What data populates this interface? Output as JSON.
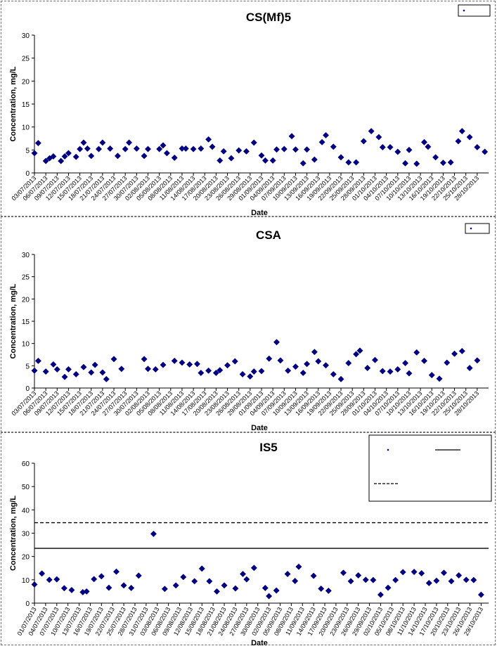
{
  "chart_data": [
    {
      "type": "scatter",
      "title": "CS(Mf)5",
      "xlabel": "Date",
      "ylabel": "Concentration, mg/L",
      "ylim": [
        0,
        30
      ],
      "yticks": [
        0,
        5,
        10,
        15,
        20,
        25,
        30
      ],
      "xlim": [
        "2013-07-03",
        "2013-10-31"
      ],
      "xticks": [
        "03/07/2013",
        "06/07/2013",
        "09/07/2013",
        "12/07/2013",
        "15/07/2013",
        "18/07/2013",
        "21/07/2013",
        "24/07/2013",
        "27/07/2013",
        "30/07/2013",
        "02/08/2013",
        "05/08/2013",
        "08/08/2013",
        "11/08/2013",
        "14/08/2013",
        "17/08/2013",
        "20/08/2013",
        "23/08/2013",
        "26/08/2013",
        "29/08/2013",
        "01/09/2013",
        "04/09/2013",
        "07/09/2013",
        "10/09/2013",
        "13/09/2013",
        "16/09/2013",
        "19/09/2013",
        "22/09/2013",
        "25/09/2013",
        "28/09/2013",
        "01/10/2013",
        "04/10/2013",
        "07/10/2013",
        "10/10/2013",
        "13/10/2013",
        "16/10/2013",
        "19/10/2013",
        "22/10/2013",
        "25/10/2013",
        "28/10/2013"
      ],
      "legend": {
        "position": "top-right",
        "entries": [
          {
            "label": "",
            "marker": "diamond"
          }
        ]
      },
      "grid": false,
      "series": [
        {
          "marker": "diamond",
          "color": "#000080",
          "x": [
            "2013-07-03",
            "2013-07-04",
            "2013-07-06",
            "2013-07-07",
            "2013-07-08",
            "2013-07-10",
            "2013-07-11",
            "2013-07-12",
            "2013-07-14",
            "2013-07-15",
            "2013-07-16",
            "2013-07-17",
            "2013-07-18",
            "2013-07-20",
            "2013-07-21",
            "2013-07-23",
            "2013-07-25",
            "2013-07-27",
            "2013-07-28",
            "2013-07-30",
            "2013-08-01",
            "2013-08-02",
            "2013-08-05",
            "2013-08-06",
            "2013-08-07",
            "2013-08-09",
            "2013-08-11",
            "2013-08-12",
            "2013-08-14",
            "2013-08-16",
            "2013-08-18",
            "2013-08-19",
            "2013-08-21",
            "2013-08-22",
            "2013-08-24",
            "2013-08-26",
            "2013-08-28",
            "2013-08-30",
            "2013-09-01",
            "2013-09-02",
            "2013-09-04",
            "2013-09-05",
            "2013-09-07",
            "2013-09-09",
            "2013-09-10",
            "2013-09-12",
            "2013-09-13",
            "2013-09-15",
            "2013-09-17",
            "2013-09-18",
            "2013-09-20",
            "2013-09-22",
            "2013-09-24",
            "2013-09-26",
            "2013-09-28",
            "2013-09-30",
            "2013-10-02",
            "2013-10-03",
            "2013-10-05",
            "2013-10-07",
            "2013-10-09",
            "2013-10-10",
            "2013-10-12",
            "2013-10-14",
            "2013-10-15",
            "2013-10-17",
            "2013-10-19",
            "2013-10-21",
            "2013-10-23",
            "2013-10-24",
            "2013-10-26",
            "2013-10-28",
            "2013-10-30"
          ],
          "y": [
            4.3,
            6.5,
            2.6,
            3.2,
            3.6,
            2.6,
            3.6,
            4.3,
            3.5,
            5.2,
            6.6,
            5.3,
            3.7,
            5.2,
            6.6,
            5.3,
            3.7,
            5.2,
            6.6,
            5.3,
            3.7,
            5.2,
            5.2,
            6.0,
            4.3,
            3.3,
            5.3,
            5.3,
            5.2,
            5.3,
            7.3,
            5.7,
            2.7,
            4.7,
            3.2,
            4.9,
            4.7,
            6.6,
            3.8,
            2.7,
            2.7,
            5.1,
            5.2,
            8.0,
            5.1,
            2.1,
            5.1,
            2.9,
            6.7,
            8.2,
            5.7,
            3.4,
            2.3,
            2.3,
            6.9,
            9.1,
            7.8,
            5.6,
            5.6,
            4.6,
            2.1,
            5.0,
            2.0,
            6.7,
            5.7,
            3.4,
            2.2,
            2.3,
            6.9,
            9.1,
            7.8,
            5.6,
            4.6
          ]
        }
      ]
    },
    {
      "type": "scatter",
      "title": "CSA",
      "xlabel": "Date",
      "ylabel": "Concentration, mg/L",
      "ylim": [
        0,
        30
      ],
      "yticks": [
        0,
        5,
        10,
        15,
        20,
        25,
        30
      ],
      "xlim": [
        "2013-07-03",
        "2013-10-31"
      ],
      "xticks": [
        "03/07/2013",
        "06/07/2013",
        "09/07/2013",
        "12/07/2013",
        "15/07/2013",
        "18/07/2013",
        "21/07/2013",
        "24/07/2013",
        "27/07/2013",
        "30/07/2013",
        "02/08/2013",
        "05/08/2013",
        "08/08/2013",
        "11/08/2013",
        "14/08/2013",
        "17/08/2013",
        "20/08/2013",
        "23/08/2013",
        "26/08/2013",
        "29/08/2013",
        "01/09/2013",
        "04/09/2013",
        "07/09/2013",
        "10/09/2013",
        "13/09/2013",
        "16/09/2013",
        "19/09/2013",
        "22/09/2013",
        "25/09/2013",
        "28/09/2013",
        "01/10/2013",
        "04/10/2013",
        "07/10/2013",
        "10/10/2013",
        "13/10/2013",
        "16/10/2013",
        "19/10/2013",
        "22/10/2013",
        "25/10/2013",
        "28/10/2013"
      ],
      "legend": {
        "position": "top-right",
        "entries": [
          {
            "label": "",
            "marker": "diamond"
          }
        ]
      },
      "grid": false,
      "series": [
        {
          "marker": "diamond",
          "color": "#000080",
          "x": [
            "2013-07-03",
            "2013-07-04",
            "2013-07-06",
            "2013-07-08",
            "2013-07-09",
            "2013-07-11",
            "2013-07-12",
            "2013-07-14",
            "2013-07-16",
            "2013-07-18",
            "2013-07-19",
            "2013-07-21",
            "2013-07-22",
            "2013-07-24",
            "2013-07-26",
            "2013-08-01",
            "2013-08-02",
            "2013-08-04",
            "2013-08-06",
            "2013-08-09",
            "2013-08-11",
            "2013-08-13",
            "2013-08-15",
            "2013-08-16",
            "2013-08-18",
            "2013-08-20",
            "2013-08-21",
            "2013-08-23",
            "2013-08-25",
            "2013-08-27",
            "2013-08-29",
            "2013-08-30",
            "2013-09-01",
            "2013-09-03",
            "2013-09-05",
            "2013-09-06",
            "2013-09-08",
            "2013-09-10",
            "2013-09-12",
            "2013-09-13",
            "2013-09-15",
            "2013-09-16",
            "2013-09-18",
            "2013-09-20",
            "2013-09-22",
            "2013-09-24",
            "2013-09-26",
            "2013-09-27",
            "2013-09-29",
            "2013-10-01",
            "2013-10-03",
            "2013-10-05",
            "2013-10-07",
            "2013-10-09",
            "2013-10-10",
            "2013-10-12",
            "2013-10-14",
            "2013-10-16",
            "2013-10-18",
            "2013-10-20",
            "2013-10-22",
            "2013-10-24",
            "2013-10-26",
            "2013-10-28"
          ],
          "y": [
            3.9,
            6.1,
            3.7,
            5.3,
            4.2,
            2.5,
            4.2,
            3.1,
            4.7,
            3.5,
            5.2,
            3.5,
            2.0,
            6.5,
            4.3,
            6.5,
            4.3,
            4.2,
            5.2,
            6.1,
            5.7,
            5.3,
            5.4,
            3.4,
            3.9,
            3.4,
            4.0,
            5.1,
            6.0,
            3.1,
            2.6,
            3.7,
            3.8,
            6.6,
            10.3,
            6.2,
            3.9,
            4.8,
            3.4,
            5.4,
            8.1,
            6.0,
            5.1,
            3.1,
            2.0,
            5.6,
            7.6,
            8.4,
            4.5,
            6.3,
            3.8,
            3.7,
            4.2,
            5.6,
            3.3,
            8.0,
            6.1,
            2.9,
            2.1,
            5.7,
            7.7,
            8.3,
            4.5,
            6.2
          ]
        }
      ]
    },
    {
      "type": "scatter",
      "title": "IS5",
      "xlabel": "Date",
      "ylabel": "Concentration, mg/L",
      "ylim": [
        0,
        60
      ],
      "yticks": [
        0,
        10,
        20,
        30,
        40,
        50,
        60
      ],
      "xlim": [
        "2013-07-01",
        "2013-10-31"
      ],
      "xticks": [
        "01/07/2013",
        "04/07/2013",
        "07/07/2013",
        "10/07/2013",
        "13/07/2013",
        "16/07/2013",
        "19/07/2013",
        "22/07/2013",
        "25/07/2013",
        "28/07/2013",
        "31/07/2013",
        "03/08/2013",
        "06/08/2013",
        "09/08/2013",
        "12/08/2013",
        "15/08/2013",
        "18/08/2013",
        "21/08/2013",
        "24/08/2013",
        "27/08/2013",
        "30/08/2013",
        "02/09/2013",
        "05/09/2013",
        "08/09/2013",
        "11/09/2013",
        "14/09/2013",
        "17/09/2013",
        "20/09/2013",
        "23/09/2013",
        "26/09/2013",
        "29/09/2013",
        "02/10/2013",
        "05/10/2013",
        "08/10/2013",
        "11/10/2013",
        "14/10/2013",
        "17/10/2013",
        "20/10/2013",
        "23/10/2013",
        "26/10/2013",
        "29/10/2013"
      ],
      "legend": {
        "position": "top-right",
        "entries": [
          {
            "label": "",
            "marker": "diamond"
          },
          {
            "label": "",
            "line": "solid"
          },
          {
            "label": "",
            "line": "dashed"
          }
        ]
      },
      "grid": false,
      "reference_lines": [
        {
          "style": "solid",
          "y": 23.5
        },
        {
          "style": "dashed",
          "y": 34.5
        }
      ],
      "series": [
        {
          "marker": "diamond",
          "color": "#000080",
          "x": [
            "2013-07-01",
            "2013-07-03",
            "2013-07-05",
            "2013-07-07",
            "2013-07-09",
            "2013-07-11",
            "2013-07-14",
            "2013-07-15",
            "2013-07-17",
            "2013-07-19",
            "2013-07-21",
            "2013-07-23",
            "2013-07-25",
            "2013-07-27",
            "2013-07-29",
            "2013-08-02",
            "2013-08-05",
            "2013-08-08",
            "2013-08-10",
            "2013-08-13",
            "2013-08-15",
            "2013-08-17",
            "2013-08-19",
            "2013-08-21",
            "2013-08-24",
            "2013-08-26",
            "2013-08-27",
            "2013-08-29",
            "2013-09-01",
            "2013-09-02",
            "2013-09-04",
            "2013-09-07",
            "2013-09-09",
            "2013-09-10",
            "2013-09-14",
            "2013-09-16",
            "2013-09-18",
            "2013-09-22",
            "2013-09-24",
            "2013-09-26",
            "2013-09-28",
            "2013-09-30",
            "2013-10-02",
            "2013-10-04",
            "2013-10-06",
            "2013-10-08",
            "2013-10-11",
            "2013-10-13",
            "2013-10-15",
            "2013-10-17",
            "2013-10-19",
            "2013-10-21",
            "2013-10-23",
            "2013-10-25",
            "2013-10-27",
            "2013-10-29"
          ],
          "y": [
            8.0,
            12.7,
            10.0,
            10.2,
            6.4,
            5.6,
            4.7,
            5.0,
            10.3,
            11.5,
            6.6,
            13.5,
            7.6,
            6.5,
            11.8,
            29.7,
            6.1,
            7.6,
            11.2,
            9.4,
            14.8,
            9.4,
            5.0,
            7.6,
            6.3,
            12.5,
            10.2,
            15.1,
            6.5,
            3.0,
            5.4,
            12.5,
            9.5,
            15.6,
            11.7,
            6.2,
            5.3,
            13.0,
            9.4,
            11.9,
            10.0,
            9.9,
            3.6,
            6.6,
            9.9,
            13.3,
            13.4,
            12.8,
            8.6,
            9.6,
            13.0,
            9.4,
            11.9,
            10.0,
            9.9,
            3.6
          ]
        }
      ]
    }
  ]
}
